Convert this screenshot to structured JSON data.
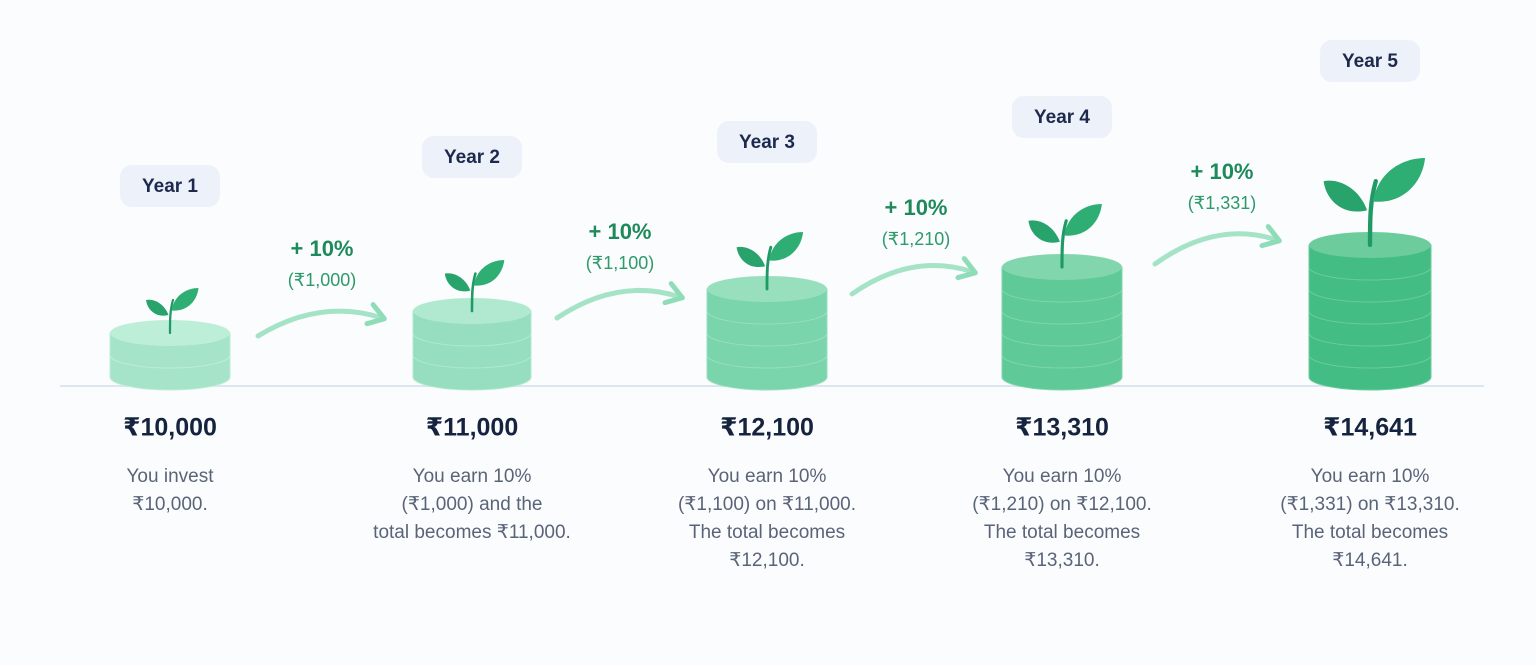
{
  "stages": [
    {
      "label": "Year 1",
      "amount": "₹10,000",
      "description": [
        "You invest",
        "₹10,000."
      ]
    },
    {
      "label": "Year 2",
      "amount": "₹11,000",
      "description": [
        "You earn 10%",
        "(₹1,000) and the",
        "total becomes ₹11,000."
      ]
    },
    {
      "label": "Year 3",
      "amount": "₹12,100",
      "description": [
        "You earn 10%",
        "(₹1,100) on ₹11,000.",
        "The total becomes",
        "₹12,100."
      ]
    },
    {
      "label": "Year 4",
      "amount": "₹13,310",
      "description": [
        "You earn 10%",
        "(₹1,210) on ₹12,100.",
        "The total becomes",
        "₹13,310."
      ]
    },
    {
      "label": "Year 5",
      "amount": "₹14,641",
      "description": [
        "You earn 10%",
        "(₹1,331) on ₹13,310.",
        "The total becomes",
        "₹14,641."
      ]
    }
  ],
  "growth": [
    {
      "rate": "+ 10%",
      "amount": "(₹1,000)"
    },
    {
      "rate": "+ 10%",
      "amount": "(₹1,100)"
    },
    {
      "rate": "+ 10%",
      "amount": "(₹1,210)"
    },
    {
      "rate": "+ 10%",
      "amount": "(₹1,331)"
    }
  ]
}
